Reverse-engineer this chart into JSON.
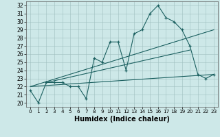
{
  "xlabel": "Humidex (Indice chaleur)",
  "bg_color": "#cde8e8",
  "line_color": "#1a5f5f",
  "xlim": [
    -0.5,
    23.5
  ],
  "ylim": [
    19.5,
    32.5
  ],
  "xticks": [
    0,
    1,
    2,
    3,
    4,
    5,
    6,
    7,
    8,
    9,
    10,
    11,
    12,
    13,
    14,
    15,
    16,
    17,
    18,
    19,
    20,
    21,
    22,
    23
  ],
  "yticks": [
    20,
    21,
    22,
    23,
    24,
    25,
    26,
    27,
    28,
    29,
    30,
    31,
    32
  ],
  "series": [
    {
      "x": [
        0,
        1,
        2,
        3,
        4,
        5,
        6,
        7,
        8,
        9,
        10,
        11,
        12,
        13,
        14,
        15,
        16,
        17,
        18,
        19,
        20,
        21,
        22,
        23
      ],
      "y": [
        21.5,
        20.0,
        22.5,
        22.5,
        22.5,
        22.0,
        22.0,
        20.5,
        25.5,
        25.0,
        27.5,
        27.5,
        24.0,
        28.5,
        29.0,
        31.0,
        32.0,
        30.5,
        30.0,
        29.0,
        27.0,
        23.5,
        23.0,
        23.5
      ],
      "marker": true
    },
    {
      "x": [
        0,
        23
      ],
      "y": [
        22.0,
        29.0
      ],
      "marker": false
    },
    {
      "x": [
        0,
        23
      ],
      "y": [
        22.0,
        23.5
      ],
      "marker": false
    },
    {
      "x": [
        2,
        20
      ],
      "y": [
        22.5,
        26.5
      ],
      "marker": false
    }
  ]
}
